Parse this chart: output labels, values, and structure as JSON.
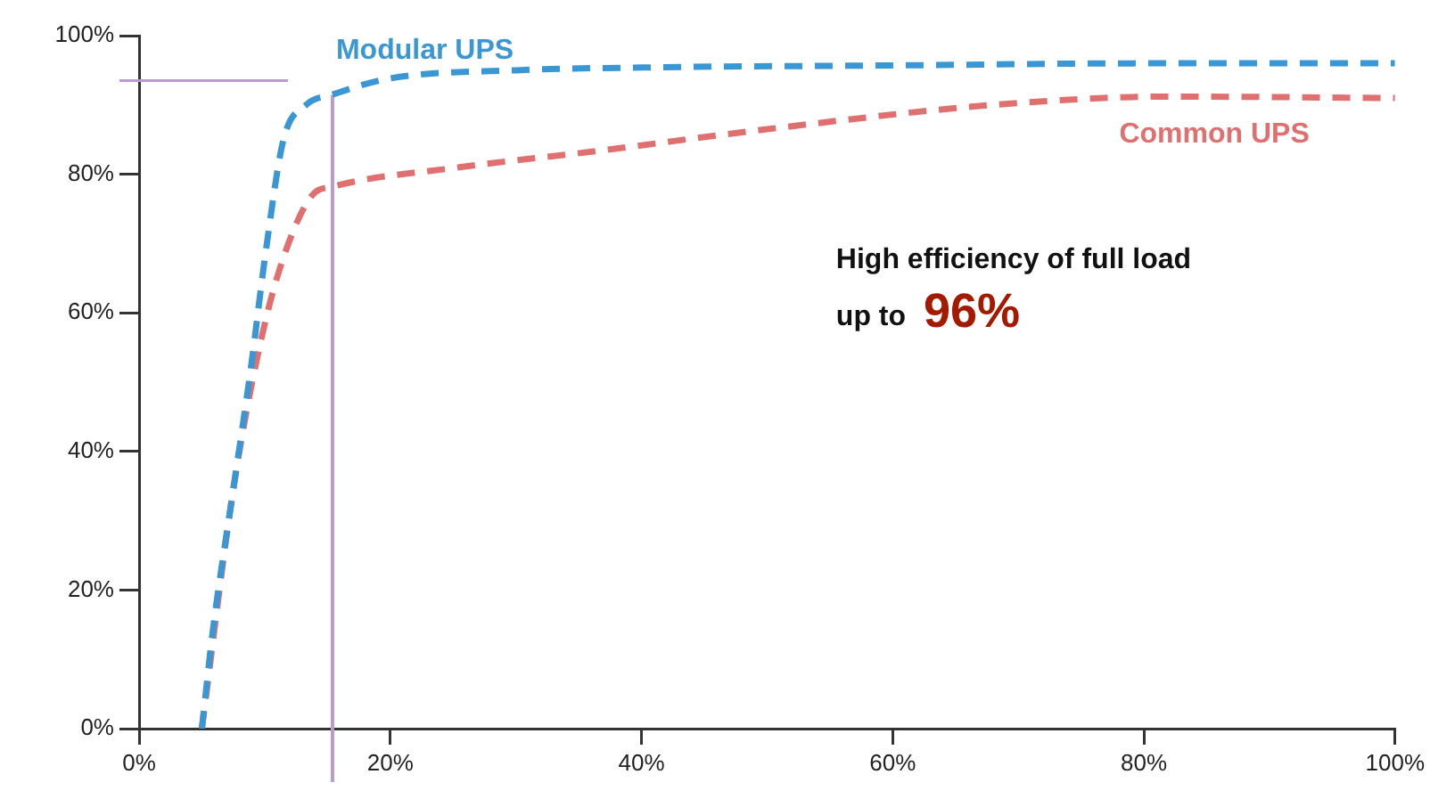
{
  "chart_data": {
    "type": "line",
    "xlim": [
      0,
      100
    ],
    "ylim": [
      0,
      100
    ],
    "xticks": [
      {
        "value": 0,
        "label": "0%"
      },
      {
        "value": 20,
        "label": "20%"
      },
      {
        "value": 40,
        "label": "40%"
      },
      {
        "value": 60,
        "label": "60%"
      },
      {
        "value": 80,
        "label": "80%"
      },
      {
        "value": 100,
        "label": "100%"
      }
    ],
    "yticks": [
      {
        "value": 0,
        "label": "0%"
      },
      {
        "value": 20,
        "label": "20%"
      },
      {
        "value": 40,
        "label": "40%"
      },
      {
        "value": 60,
        "label": "60%"
      },
      {
        "value": 80,
        "label": "80%"
      },
      {
        "value": 100,
        "label": "100%"
      }
    ],
    "series": [
      {
        "name": "Modular UPS",
        "color": "#3a97d4",
        "x": [
          5,
          5.9,
          7.5,
          8.9,
          10.1,
          11.5,
          13.3,
          15.4,
          19.9,
          30,
          40,
          60,
          80,
          100
        ],
        "values": [
          0,
          14.5,
          34.5,
          52,
          69,
          85,
          90,
          91.5,
          93.8,
          95,
          95.4,
          95.7,
          96,
          96
        ]
      },
      {
        "name": "Common UPS",
        "color": "#e07070",
        "x": [
          5,
          5.9,
          7.5,
          9.7,
          11.5,
          13.8,
          15.4,
          25.5,
          36.7,
          50,
          68,
          82,
          100
        ],
        "values": [
          0,
          null,
          34.5,
          56,
          68,
          77,
          78.2,
          81,
          83.4,
          86.5,
          90,
          91.2,
          91
        ]
      }
    ],
    "ref_lines": [
      {
        "axis": "x",
        "value": 15.4,
        "color": "#b89bd0"
      },
      {
        "axis": "y",
        "value": 93.5,
        "color": "#b89bd0"
      }
    ],
    "annotations": [
      "High efficiency of full load",
      "up to",
      "96%"
    ],
    "grid": false,
    "legend": false,
    "marker": "none",
    "line_style": "dashed"
  }
}
